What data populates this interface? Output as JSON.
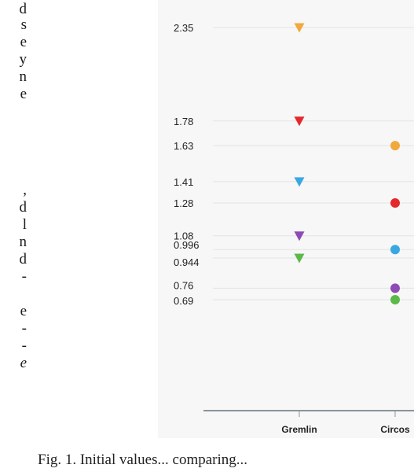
{
  "left_fragments": [
    {
      "text": "d",
      "italic": false
    },
    {
      "text": "s",
      "italic": false
    },
    {
      "text": "e",
      "italic": false
    },
    {
      "text": "y",
      "italic": false
    },
    {
      "text": "n",
      "italic": false
    },
    {
      "text": "e",
      "italic": false
    },
    {
      "text": ",",
      "italic": false
    },
    {
      "text": "d",
      "italic": false
    },
    {
      "text": "l",
      "italic": false
    },
    {
      "text": "n",
      "italic": false
    },
    {
      "text": "d",
      "italic": false
    },
    {
      "text": "-",
      "italic": false
    },
    {
      "text": "e",
      "italic": false
    },
    {
      "text": "-",
      "italic": false
    },
    {
      "text": "-",
      "italic": false
    },
    {
      "text": "e",
      "italic": true
    }
  ],
  "caption": "Fig. 1. Initial values... comparing...",
  "chart_data": {
    "type": "scatter",
    "categories": [
      "Gremlin",
      "Circos"
    ],
    "ylim": [
      0.69,
      2.35
    ],
    "ytick_values": [
      2.35,
      1.78,
      1.63,
      1.41,
      1.28,
      1.08,
      0.996,
      0.944,
      0.76,
      0.69
    ],
    "ytick_labels": [
      "2.35",
      "1.78",
      "1.63",
      "1.41",
      "1.28",
      "1.08",
      "0.996",
      "0.944",
      "0.76",
      "0.69"
    ],
    "grid": true,
    "series": [
      {
        "category": "Gremlin",
        "marker": "triangle-down",
        "color": "#f2a93b",
        "value": 2.35
      },
      {
        "category": "Gremlin",
        "marker": "triangle-down",
        "color": "#e5282c",
        "value": 1.78
      },
      {
        "category": "Gremlin",
        "marker": "triangle-down",
        "color": "#3aa8e0",
        "value": 1.41
      },
      {
        "category": "Gremlin",
        "marker": "triangle-down",
        "color": "#8e4bb4",
        "value": 1.08
      },
      {
        "category": "Gremlin",
        "marker": "triangle-down",
        "color": "#5cb848",
        "value": 0.944
      },
      {
        "category": "Circos",
        "marker": "circle",
        "color": "#f2a93b",
        "value": 1.63
      },
      {
        "category": "Circos",
        "marker": "circle",
        "color": "#e5282c",
        "value": 1.28
      },
      {
        "category": "Circos",
        "marker": "circle",
        "color": "#3aa8e0",
        "value": 0.996
      },
      {
        "category": "Circos",
        "marker": "circle",
        "color": "#8e4bb4",
        "value": 0.76
      },
      {
        "category": "Circos",
        "marker": "circle",
        "color": "#5cb848",
        "value": 0.69
      }
    ]
  }
}
